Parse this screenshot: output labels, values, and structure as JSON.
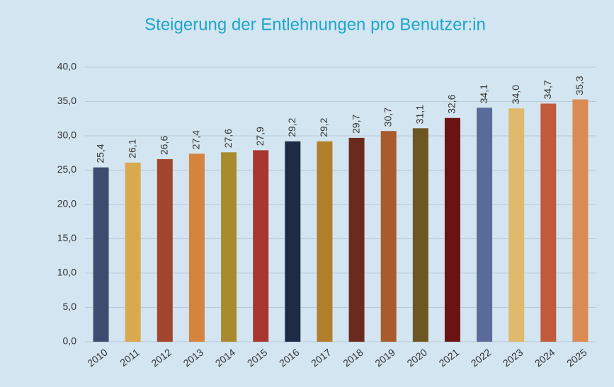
{
  "chart_data": {
    "type": "bar",
    "title": "Steigerung der Entlehnungen pro Benutzer:in",
    "categories": [
      "2010",
      "2011",
      "2012",
      "2013",
      "2014",
      "2015",
      "2016",
      "2017",
      "2018",
      "2019",
      "2020",
      "2021",
      "2022",
      "2023",
      "2024",
      "2025"
    ],
    "values": [
      25.4,
      26.1,
      26.6,
      27.4,
      27.6,
      27.9,
      29.2,
      29.2,
      29.7,
      30.7,
      31.1,
      32.6,
      34.1,
      34.0,
      34.7,
      35.3
    ],
    "value_labels": [
      "25,4",
      "26,1",
      "26,6",
      "27,4",
      "27,6",
      "27,9",
      "29,2",
      "29,2",
      "29,7",
      "30,7",
      "31,1",
      "32,6",
      "34,1",
      "34,0",
      "34,7",
      "35,3"
    ],
    "colors": [
      "#3e4b70",
      "#d9a94f",
      "#a1452d",
      "#d5833f",
      "#a98a2f",
      "#a8352e",
      "#1f2a45",
      "#b17e2b",
      "#6c2a1e",
      "#a95b2e",
      "#6c5621",
      "#6b1313",
      "#5a6a9a",
      "#e0b96b",
      "#c1593a",
      "#da8b51"
    ],
    "ylim": [
      0,
      40
    ],
    "yticks": [
      {
        "value": 0,
        "label": "0,0"
      },
      {
        "value": 5,
        "label": "5,0"
      },
      {
        "value": 10,
        "label": "10,0"
      },
      {
        "value": 15,
        "label": "15,0"
      },
      {
        "value": 20,
        "label": "20,0"
      },
      {
        "value": 25,
        "label": "25,0"
      },
      {
        "value": 30,
        "label": "30,0"
      },
      {
        "value": 35,
        "label": "35,0"
      },
      {
        "value": 40,
        "label": "40,0"
      }
    ],
    "grid": true
  }
}
